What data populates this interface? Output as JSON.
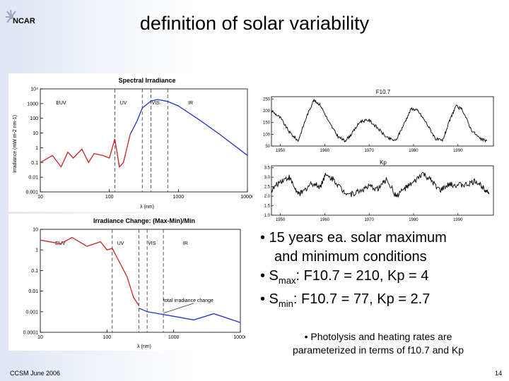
{
  "slide": {
    "logo_text": "NCAR",
    "title": "definition of solar variability",
    "bullets": {
      "b1_line1": "• 15 years ea. solar maximum",
      "b1_line2": "and minimum conditions",
      "b2_prefix": "• S",
      "b2_sub": "max",
      "b2_rest": ": F10.7 = 210, Kp = 4",
      "b3_prefix": "• S",
      "b3_sub": "min",
      "b3_rest": ": F10.7 = 77, Kp =  2.7"
    },
    "note_line1": "• Photolysis and heating rates are",
    "note_line2": "parameterized in terms of f10.7 and Kp",
    "footer_left": "CCSM June 2006",
    "page_number": "14"
  },
  "chart_data": [
    {
      "type": "line",
      "title": "Spectral Irradiance",
      "xlabel": "λ (nm)",
      "ylabel": "Irradiance (mW m-2 nm-1)",
      "xscale": "log",
      "yscale": "log",
      "xlim": [
        10,
        10000
      ],
      "ylim": [
        0.001,
        10000
      ],
      "x_ticks": [
        "10",
        "100",
        "1000",
        "10000"
      ],
      "y_ticks": [
        "10⁴",
        "1000",
        "100",
        "10",
        "1",
        "0.1",
        "0.01",
        "0.001"
      ],
      "region_labels": [
        "EUV",
        "UV",
        "VIS",
        "IR"
      ],
      "region_boundaries_nm": [
        120,
        300,
        400,
        700
      ],
      "series": [
        {
          "color": "#cc2222",
          "x": [
            10,
            15,
            20,
            25,
            30,
            40,
            50,
            60,
            80,
            100,
            120,
            140,
            160,
            180,
            200
          ],
          "y": [
            0.1,
            0.3,
            0.05,
            0.5,
            0.2,
            0.8,
            0.1,
            0.4,
            0.3,
            0.2,
            4,
            0.05,
            0.1,
            1,
            8
          ]
        },
        {
          "color": "#2233cc",
          "x": [
            200,
            250,
            300,
            400,
            500,
            700,
            1000,
            2000,
            4000,
            10000
          ],
          "y": [
            8,
            60,
            500,
            1500,
            1900,
            1400,
            700,
            80,
            8,
            0.3
          ]
        }
      ]
    },
    {
      "type": "line",
      "title": "Irradiance Change: (Max-Min)/Min",
      "xlabel": "λ (nm)",
      "xscale": "log",
      "yscale": "log",
      "xlim": [
        10,
        10000
      ],
      "ylim": [
        0.0001,
        10
      ],
      "x_ticks": [
        "10",
        "100",
        "1000",
        "10000"
      ],
      "y_ticks": [
        "10",
        "1",
        "0.1",
        "0.01",
        "0.001",
        "0.0001"
      ],
      "region_labels": [
        "EUV",
        "UV",
        "VIS",
        "IR"
      ],
      "region_boundaries_nm": [
        120,
        300,
        400,
        700
      ],
      "annotation": "total irradiance change",
      "total_irradiance_change": 0.001,
      "series": [
        {
          "color": "#cc2222",
          "x": [
            10,
            20,
            30,
            50,
            80,
            100,
            120,
            150,
            200,
            250,
            300
          ],
          "y": [
            3,
            2,
            4,
            1.5,
            2.5,
            1,
            1.2,
            0.3,
            0.05,
            0.005,
            0.002
          ]
        },
        {
          "color": "#2233cc",
          "x": [
            300,
            400,
            600,
            1000,
            2000,
            4000,
            10000
          ],
          "y": [
            0.0015,
            0.001,
            0.0008,
            0.0006,
            0.0004,
            0.0008,
            0.0003
          ]
        }
      ]
    },
    {
      "type": "line",
      "title": "F10.7",
      "xlim": [
        1948,
        1998
      ],
      "ylim": [
        50,
        260
      ],
      "x_ticks": [
        "1950",
        "1960",
        "1970",
        "1980",
        "1990"
      ],
      "y_ticks": [
        "250",
        "200",
        "150",
        "100",
        "50"
      ],
      "series": [
        {
          "color": "#000000",
          "x": [
            1948,
            1950,
            1952,
            1954,
            1956,
            1957.5,
            1959,
            1961,
            1963,
            1964.5,
            1966,
            1968,
            1970,
            1972,
            1974,
            1976,
            1978,
            1979.5,
            1981,
            1983,
            1985,
            1986.5,
            1988,
            1989.5,
            1991,
            1993,
            1995,
            1996.5
          ],
          "y": [
            200,
            170,
            110,
            72,
            180,
            245,
            225,
            150,
            90,
            72,
            100,
            155,
            160,
            125,
            85,
            72,
            150,
            210,
            200,
            145,
            80,
            72,
            150,
            220,
            205,
            120,
            80,
            72
          ]
        }
      ]
    },
    {
      "type": "line",
      "title": "Kp",
      "xlim": [
        1948,
        1998
      ],
      "ylim": [
        1,
        3.6
      ],
      "x_ticks": [
        "1950",
        "1960",
        "1970",
        "1980",
        "1990"
      ],
      "y_ticks": [
        "3.5",
        "3.0",
        "2.5",
        "2.0",
        "1.5",
        "1.0"
      ],
      "series": [
        {
          "color": "#000000",
          "x": [
            1948,
            1950,
            1952,
            1954,
            1955,
            1957,
            1959,
            1960,
            1962,
            1964,
            1966,
            1968,
            1970,
            1972,
            1974,
            1976,
            1978,
            1980,
            1982,
            1984,
            1986,
            1988,
            1990,
            1992,
            1994,
            1996,
            1997
          ],
          "y": [
            2.3,
            2.8,
            3.0,
            2.1,
            2.2,
            2.7,
            2.5,
            3.1,
            2.9,
            2.3,
            2.1,
            2.3,
            2.5,
            2.4,
            2.9,
            2.0,
            2.4,
            2.7,
            3.2,
            2.8,
            2.3,
            2.6,
            2.6,
            2.6,
            2.8,
            2.4,
            2.2
          ]
        }
      ]
    }
  ]
}
